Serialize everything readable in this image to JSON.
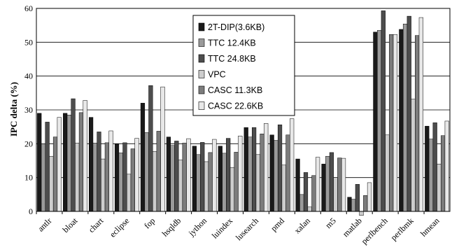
{
  "chart_data": {
    "type": "bar",
    "title": "",
    "xlabel": "",
    "ylabel": "IPC delta (%)",
    "ylim": [
      0,
      60
    ],
    "yticks": [
      0,
      10,
      20,
      30,
      40,
      50,
      60
    ],
    "grid": "horizontal",
    "legend_position": "top-center",
    "categories": [
      "antlr",
      "bloat",
      "chart",
      "eclipse",
      "fop",
      "hsqldb",
      "jython",
      "luindex",
      "lusearch",
      "pmd",
      "xalan",
      "m5",
      "matlab",
      "perlbench",
      "perlbmk",
      "hmean"
    ],
    "series": [
      {
        "name": "2T-DIP(3.6KB)",
        "color": "#1a1a1a",
        "values": [
          29,
          29,
          27.8,
          20,
          32,
          22,
          19.3,
          19.3,
          24.8,
          22.6,
          15.5,
          14,
          4.2,
          53,
          53.8,
          25.2
        ]
      },
      {
        "name": "TTC 12.4KB",
        "color": "#9a9a9a",
        "values": [
          20,
          28.5,
          20.2,
          17.3,
          23.3,
          19.5,
          16.8,
          17.2,
          22,
          21,
          5,
          16.3,
          3.6,
          53.5,
          55.4,
          21.4
        ]
      },
      {
        "name": "TTC 24.8KB",
        "color": "#4d4d4d",
        "values": [
          26.4,
          33.3,
          23.5,
          20.3,
          37.2,
          20.8,
          20.4,
          21.6,
          24.8,
          25.6,
          11.5,
          17.4,
          8,
          59.3,
          57.7,
          26.2
        ]
      },
      {
        "name": "VPC",
        "color": "#cdcdcd",
        "values": [
          16.3,
          20.2,
          15.5,
          11,
          17.7,
          15.2,
          14.7,
          13,
          16.8,
          13.7,
          1.3,
          10,
          -1.2,
          22.6,
          33.2,
          14
        ]
      },
      {
        "name": "CASC 11.3KB",
        "color": "#7c7c7c",
        "values": [
          22,
          29.2,
          20.3,
          18.5,
          23.7,
          20.2,
          17.4,
          17.5,
          22.9,
          22.6,
          10.6,
          15.8,
          4.7,
          52.3,
          52,
          22.4
        ]
      },
      {
        "name": "CASC 22.6KB",
        "color": "#e8e8e8",
        "values": [
          27.8,
          32.8,
          23.8,
          21.6,
          36.8,
          21.5,
          21.3,
          22.3,
          26,
          27.4,
          16,
          15.7,
          8.5,
          52.3,
          57.3,
          26.7
        ]
      }
    ]
  }
}
